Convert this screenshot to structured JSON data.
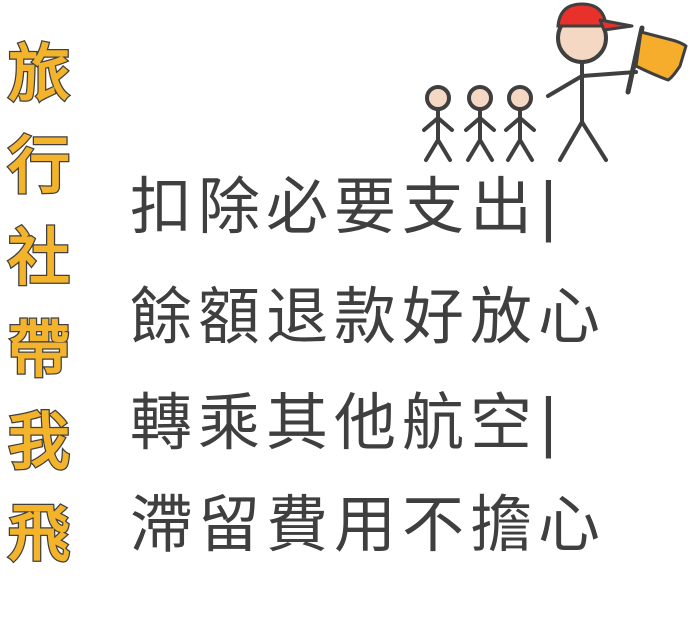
{
  "title_vertical": "旅行社帶我飛",
  "lines": [
    "扣除必要支出|",
    "餘額退款好放心",
    "轉乘其他航空|",
    "滯留費用不擔心"
  ],
  "colors": {
    "accent": "#f3b32b",
    "text": "#3f3f3f",
    "cap": "#e8312b",
    "flag": "#f6ad2c",
    "skin": "#f5d8c3"
  },
  "icons": [
    "tour-guide-stick-figure-icon",
    "flag-icon",
    "follower-stick-figure-icon"
  ]
}
